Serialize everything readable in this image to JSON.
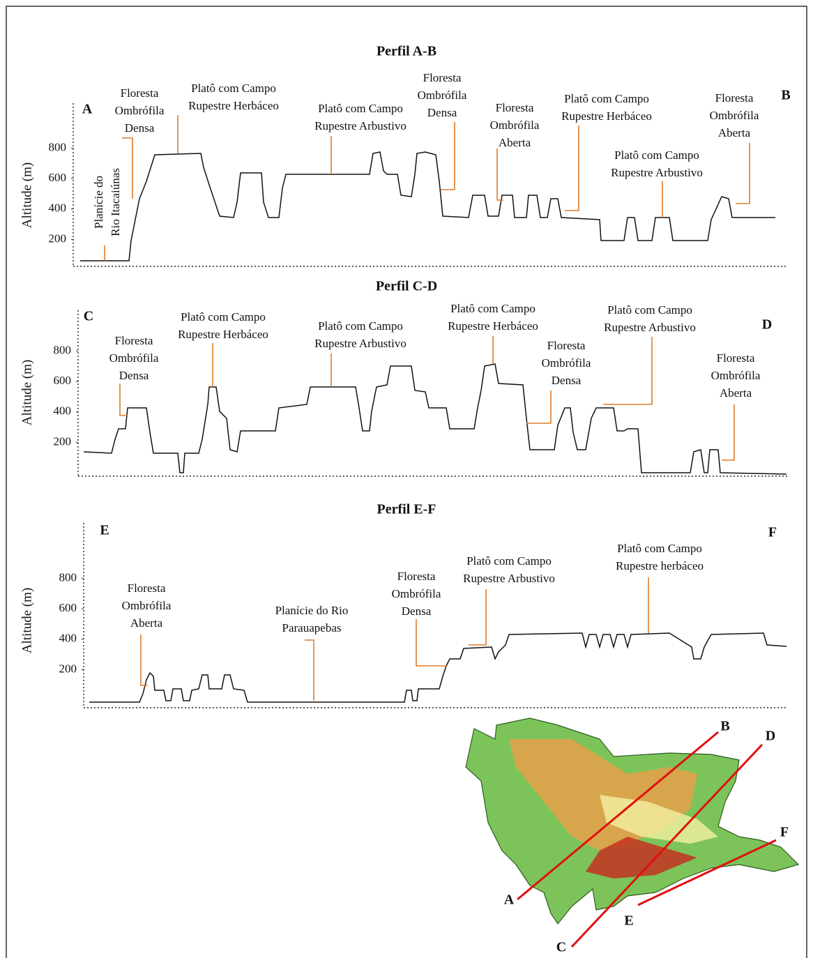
{
  "profiles": [
    {
      "title": "Perfil A-B",
      "start": "A",
      "end": "B",
      "y_axis_label": "Altitude (m)",
      "yticks": [
        800,
        600,
        400,
        200
      ],
      "annotations": [
        {
          "lines": [
            "Floresta",
            "Ombrófila",
            "Densa"
          ]
        },
        {
          "lines": [
            "Planície do",
            "Rio Itacaiúnas"
          ]
        },
        {
          "lines": [
            "Platô com Campo",
            "Rupestre Herbáceo"
          ]
        },
        {
          "lines": [
            "Platô com Campo",
            "Rupestre Arbustivo"
          ]
        },
        {
          "lines": [
            "Floresta",
            "Ombrófila",
            "Densa"
          ]
        },
        {
          "lines": [
            "Floresta",
            "Ombrófila",
            "Aberta"
          ]
        },
        {
          "lines": [
            "Platô com Campo",
            "Rupestre Herbáceo"
          ]
        },
        {
          "lines": [
            "Platô com Campo",
            "Rupestre Arbustivo"
          ]
        },
        {
          "lines": [
            "Floresta",
            "Ombrófila",
            "Aberta"
          ]
        }
      ]
    },
    {
      "title": "Perfil C-D",
      "start": "C",
      "end": "D",
      "y_axis_label": "Altitude (m)",
      "yticks": [
        800,
        600,
        400,
        200
      ],
      "annotations": [
        {
          "lines": [
            "Floresta",
            "Ombrófila",
            "Densa"
          ]
        },
        {
          "lines": [
            "Platô com Campo",
            "Rupestre Herbáceo"
          ]
        },
        {
          "lines": [
            "Platô com Campo",
            "Rupestre Arbustivo"
          ]
        },
        {
          "lines": [
            "Platô com Campo",
            "Rupestre Herbáceo"
          ]
        },
        {
          "lines": [
            "Floresta",
            "Ombrófila",
            "Densa"
          ]
        },
        {
          "lines": [
            "Platô com Campo",
            "Rupestre Arbustivo"
          ]
        },
        {
          "lines": [
            "Floresta",
            "Ombrófila",
            "Aberta"
          ]
        }
      ]
    },
    {
      "title": "Perfil E-F",
      "start": "E",
      "end": "F",
      "y_axis_label": "Altitude (m)",
      "yticks": [
        800,
        600,
        400,
        200
      ],
      "annotations": [
        {
          "lines": [
            "Floresta",
            "Ombrófila",
            "Aberta"
          ]
        },
        {
          "lines": [
            "Planície do Rio",
            "Parauapebas"
          ]
        },
        {
          "lines": [
            "Floresta",
            "Ombrófila",
            "Densa"
          ]
        },
        {
          "lines": [
            "Platô com Campo",
            "Rupestre Arbustivo"
          ]
        },
        {
          "lines": [
            "Platô com Campo",
            "Rupestre herbáceo"
          ]
        }
      ]
    }
  ],
  "map": {
    "labels": [
      "A",
      "B",
      "C",
      "D",
      "E",
      "F"
    ]
  }
}
